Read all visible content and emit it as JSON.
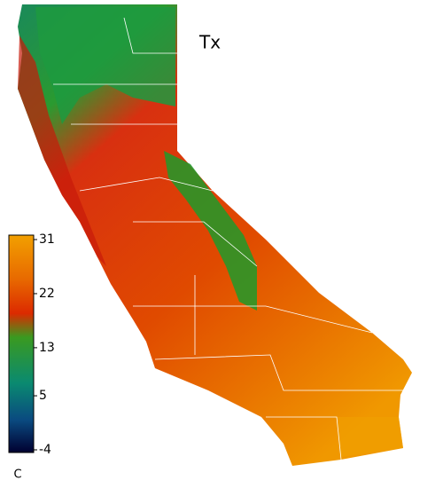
{
  "map": {
    "title": "Tx"
  },
  "legend": {
    "unit": "C",
    "range": [
      -4,
      31
    ],
    "ticks": [
      -4,
      5,
      13,
      22,
      31
    ]
  }
}
